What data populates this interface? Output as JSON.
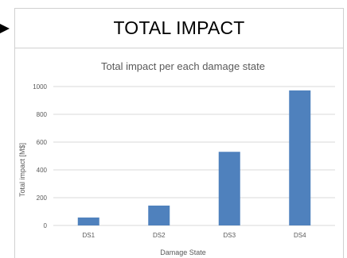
{
  "header": {
    "title": "TOTAL IMPACT"
  },
  "chart_data": {
    "type": "bar",
    "title": "Total impact per each damage state",
    "xlabel": "Damage State",
    "ylabel": "Total impact [M$]",
    "categories": [
      "DS1",
      "DS2",
      "DS3",
      "DS4"
    ],
    "values": [
      57,
      143,
      530,
      972
    ],
    "ylim": [
      0,
      1000
    ],
    "yticks": [
      0,
      200,
      400,
      600,
      800,
      1000
    ],
    "grid": true,
    "legend": "none",
    "bar_color": "#4f81bd",
    "grid_color": "#d9d9d9"
  }
}
